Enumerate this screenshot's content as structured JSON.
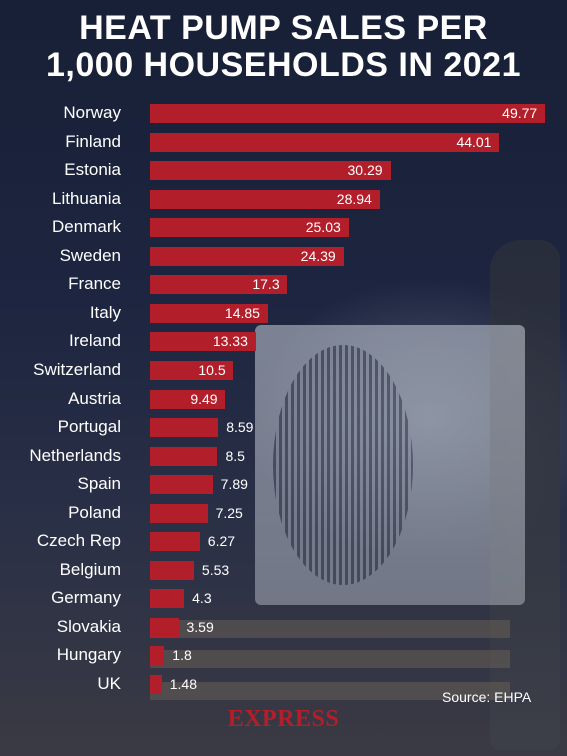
{
  "header": {
    "title_line1": "HEAT PUMP SALES PER",
    "title_line2": "1,000 HOUSEHOLDS IN 2021"
  },
  "footer": {
    "source": "Source: EHPA",
    "logo": "EXPRESS"
  },
  "colors": {
    "bar": "#b21f2a",
    "background": "#1a2138",
    "text": "#ffffff"
  },
  "chart_data": {
    "type": "bar",
    "orientation": "horizontal",
    "title": "HEAT PUMP SALES PER 1,000 HOUSEHOLDS IN 2021",
    "categories": [
      "Norway",
      "Finland",
      "Estonia",
      "Lithuania",
      "Denmark",
      "Sweden",
      "France",
      "Italy",
      "Ireland",
      "Switzerland",
      "Austria",
      "Portugal",
      "Netherlands",
      "Spain",
      "Poland",
      "Czech Rep",
      "Belgium",
      "Germany",
      "Slovakia",
      "Hungary",
      "UK"
    ],
    "values": [
      49.77,
      44.01,
      30.29,
      28.94,
      25.03,
      24.39,
      17.3,
      14.85,
      13.33,
      10.5,
      9.49,
      8.59,
      8.5,
      7.89,
      7.25,
      6.27,
      5.53,
      4.3,
      3.59,
      1.8,
      1.48
    ],
    "labels": [
      "49.77",
      "44.01",
      "30.29",
      "28.94",
      "25.03",
      "24.39",
      "17.3",
      "14.85",
      "13.33",
      "10.5",
      "9.49",
      "8.59",
      "8.5",
      "7.89",
      "7.25",
      "6.27",
      "5.53",
      "4.3",
      "3.59",
      "1.8",
      "1.48"
    ],
    "xlim": [
      0,
      50
    ],
    "grid": false,
    "legend": "none"
  }
}
